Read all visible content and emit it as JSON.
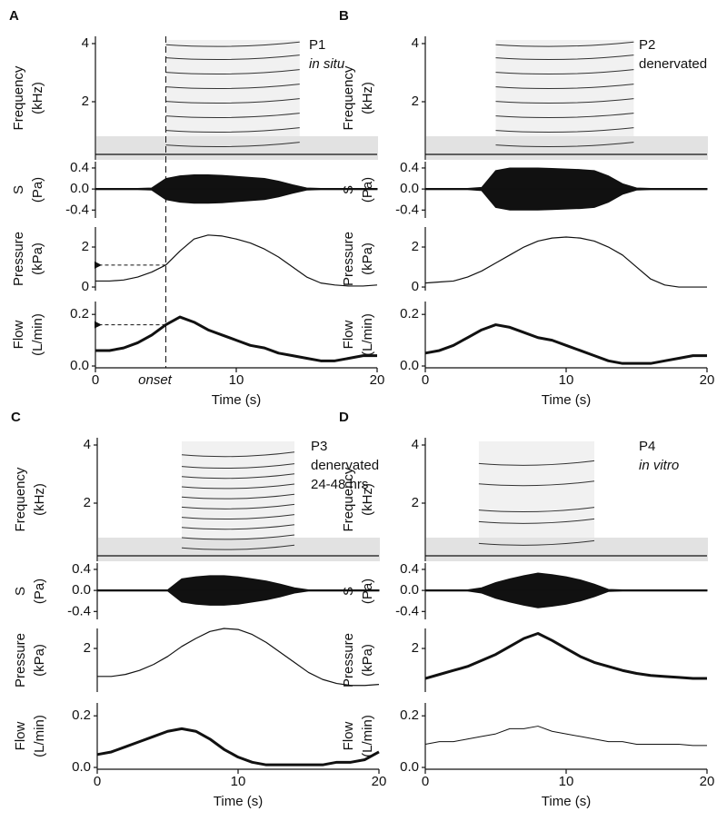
{
  "chart_data": [
    {
      "label": "A",
      "annotation": [
        {
          "text": "P1"
        },
        {
          "text": "in situ",
          "style": "italic"
        }
      ],
      "onset": {
        "label": "onset",
        "value": 5
      },
      "x": [
        0,
        1,
        2,
        3,
        4,
        5,
        6,
        7,
        8,
        9,
        10,
        11,
        12,
        13,
        14,
        15,
        16,
        17,
        18,
        19,
        20
      ],
      "xlim": [
        0,
        20
      ],
      "xticks": [
        0,
        10,
        20
      ],
      "xlabel": "Time (s)",
      "subplots": [
        {
          "type": "spectrogram",
          "ylabel": [
            "Frequency",
            "(kHz)"
          ],
          "ylim": [
            0,
            4.25
          ],
          "yticks": [
            2,
            4
          ],
          "start": 5,
          "end": 14.5,
          "harmonics": [
            0.45,
            0.95,
            1.45,
            1.95,
            2.45,
            2.95,
            3.45,
            3.9
          ]
        },
        {
          "type": "envelope",
          "ylabel": [
            "S",
            "(Pa)"
          ],
          "ylim": [
            -0.55,
            0.52
          ],
          "yticks": [
            0.4,
            {
              "value": 0,
              "label": "0.0"
            },
            -0.4
          ],
          "values": [
            0.01,
            0.01,
            0.01,
            0.01,
            0.02,
            0.2,
            0.25,
            0.27,
            0.27,
            0.26,
            0.24,
            0.22,
            0.2,
            0.15,
            0.08,
            0.02,
            0.01,
            0.01,
            0.01,
            0.01,
            0.01
          ]
        },
        {
          "type": "line",
          "ylabel": [
            "Pressure",
            "(kPa)"
          ],
          "ylim": [
            -0.18,
            3.0
          ],
          "yticks": [
            0,
            2
          ],
          "width": 1.2,
          "values": [
            0.3,
            0.3,
            0.35,
            0.5,
            0.75,
            1.1,
            1.8,
            2.4,
            2.6,
            2.55,
            2.4,
            2.2,
            1.9,
            1.5,
            1.0,
            0.5,
            0.2,
            0.1,
            0.05,
            0.05,
            0.1
          ]
        },
        {
          "type": "line",
          "ylabel": [
            "Flow",
            "(L/min)"
          ],
          "ylim": [
            -0.007,
            0.25
          ],
          "yticks": [
            {
              "value": 0,
              "label": "0.0"
            },
            0.2
          ],
          "width": 3,
          "xaxis": true,
          "values": [
            0.06,
            0.06,
            0.07,
            0.09,
            0.12,
            0.16,
            0.19,
            0.17,
            0.14,
            0.12,
            0.1,
            0.08,
            0.07,
            0.05,
            0.04,
            0.03,
            0.02,
            0.02,
            0.03,
            0.04,
            0.04
          ]
        }
      ]
    },
    {
      "label": "B",
      "annotation": [
        {
          "text": "P2"
        },
        {
          "text": "denervated"
        }
      ],
      "x": [
        0,
        1,
        2,
        3,
        4,
        5,
        6,
        7,
        8,
        9,
        10,
        11,
        12,
        13,
        14,
        15,
        16,
        17,
        18,
        19,
        20
      ],
      "xlim": [
        0,
        20
      ],
      "xticks": [
        0,
        10,
        20
      ],
      "xlabel": "Time (s)",
      "subplots": [
        {
          "type": "spectrogram",
          "ylabel": [
            "Frequency",
            "(kHz)"
          ],
          "ylim": [
            0,
            4.25
          ],
          "yticks": [
            2,
            4
          ],
          "start": 5,
          "end": 14.8,
          "harmonics": [
            0.45,
            0.95,
            1.45,
            1.95,
            2.45,
            2.95,
            3.45,
            3.9
          ]
        },
        {
          "type": "envelope",
          "ylabel": [
            "S",
            "(Pa)"
          ],
          "ylim": [
            -0.55,
            0.52
          ],
          "yticks": [
            0.4,
            {
              "value": 0,
              "label": "0.0"
            },
            -0.4
          ],
          "values": [
            0.01,
            0.01,
            0.01,
            0.01,
            0.03,
            0.35,
            0.4,
            0.4,
            0.4,
            0.39,
            0.38,
            0.37,
            0.35,
            0.25,
            0.1,
            0.02,
            0.01,
            0.01,
            0.01,
            0.01,
            0.01
          ]
        },
        {
          "type": "line",
          "ylabel": [
            "Pressure",
            "(kPa)"
          ],
          "ylim": [
            -0.18,
            3.0
          ],
          "yticks": [
            0,
            2
          ],
          "width": 1.2,
          "values": [
            0.2,
            0.25,
            0.3,
            0.5,
            0.8,
            1.2,
            1.6,
            2.0,
            2.3,
            2.45,
            2.5,
            2.45,
            2.3,
            2.0,
            1.6,
            1.0,
            0.4,
            0.1,
            0,
            0,
            0
          ]
        },
        {
          "type": "line",
          "ylabel": [
            "Flow",
            "(L/min)"
          ],
          "ylim": [
            -0.007,
            0.25
          ],
          "yticks": [
            {
              "value": 0,
              "label": "0.0"
            },
            0.2
          ],
          "width": 3,
          "xaxis": true,
          "values": [
            0.05,
            0.06,
            0.08,
            0.11,
            0.14,
            0.16,
            0.15,
            0.13,
            0.11,
            0.1,
            0.08,
            0.06,
            0.04,
            0.02,
            0.01,
            0.01,
            0.01,
            0.02,
            0.03,
            0.04,
            0.04
          ]
        }
      ]
    },
    {
      "label": "C",
      "annotation": [
        {
          "text": "P3"
        },
        {
          "text": "denervated"
        },
        {
          "text": "24-48 hrs"
        }
      ],
      "x": [
        0,
        1,
        2,
        3,
        4,
        5,
        6,
        7,
        8,
        9,
        10,
        11,
        12,
        13,
        14,
        15,
        16,
        17,
        18,
        19,
        20
      ],
      "xlim": [
        0,
        20
      ],
      "xticks": [
        0,
        10,
        20
      ],
      "xlabel": "Time (s)",
      "subplots": [
        {
          "type": "spectrogram",
          "ylabel": [
            "Frequency",
            "(kHz)"
          ],
          "ylim": [
            0,
            4.25
          ],
          "yticks": [
            2,
            4
          ],
          "start": 6,
          "end": 14,
          "harmonics": [
            0.4,
            0.75,
            1.1,
            1.45,
            1.8,
            2.15,
            2.5,
            2.85,
            3.2,
            3.6
          ]
        },
        {
          "type": "envelope",
          "ylabel": [
            "S",
            "(Pa)"
          ],
          "ylim": [
            -0.55,
            0.52
          ],
          "yticks": [
            0.4,
            {
              "value": 0,
              "label": "0.0"
            },
            -0.4
          ],
          "values": [
            0.01,
            0.01,
            0.01,
            0.01,
            0.01,
            0.01,
            0.22,
            0.26,
            0.28,
            0.28,
            0.26,
            0.22,
            0.18,
            0.12,
            0.05,
            0.01,
            0.01,
            0.01,
            0.01,
            0.01,
            0.01
          ]
        },
        {
          "type": "line",
          "ylabel": [
            "Pressure",
            "(kPa)"
          ],
          "ylim": [
            -0.18,
            3.0
          ],
          "yticks": [
            2
          ],
          "width": 1.2,
          "values": [
            0.6,
            0.6,
            0.7,
            0.9,
            1.2,
            1.6,
            2.1,
            2.5,
            2.85,
            3.0,
            2.95,
            2.7,
            2.3,
            1.8,
            1.3,
            0.8,
            0.45,
            0.25,
            0.15,
            0.15,
            0.2
          ]
        },
        {
          "type": "line",
          "ylabel": [
            "Flow",
            "(L/min)"
          ],
          "ylim": [
            -0.007,
            0.25
          ],
          "yticks": [
            {
              "value": 0,
              "label": "0.0"
            },
            0.2
          ],
          "width": 3,
          "xaxis": true,
          "values": [
            0.05,
            0.06,
            0.08,
            0.1,
            0.12,
            0.14,
            0.15,
            0.14,
            0.11,
            0.07,
            0.04,
            0.02,
            0.01,
            0.01,
            0.01,
            0.01,
            0.01,
            0.02,
            0.02,
            0.03,
            0.06
          ]
        }
      ]
    },
    {
      "label": "D",
      "annotation": [
        {
          "text": "P4"
        },
        {
          "text": "in vitro",
          "style": "italic"
        }
      ],
      "x": [
        0,
        1,
        2,
        3,
        4,
        5,
        6,
        7,
        8,
        9,
        10,
        11,
        12,
        13,
        14,
        15,
        16,
        17,
        18,
        19,
        20
      ],
      "xlim": [
        0,
        20
      ],
      "xticks": [
        0,
        10,
        20
      ],
      "xlabel": "Time (s)",
      "subplots": [
        {
          "type": "spectrogram",
          "ylabel": [
            "Frequency",
            "(kHz)"
          ],
          "ylim": [
            0,
            4.25
          ],
          "yticks": [
            2,
            4
          ],
          "start": 3.8,
          "end": 12,
          "harmonics": [
            0.55,
            1.3,
            1.7,
            2.6,
            3.3
          ]
        },
        {
          "type": "envelope",
          "ylabel": [
            "S",
            "(Pa)"
          ],
          "ylim": [
            -0.55,
            0.52
          ],
          "yticks": [
            0.4,
            {
              "value": 0,
              "label": "0.0"
            },
            -0.4
          ],
          "values": [
            0.01,
            0.01,
            0.01,
            0.01,
            0.05,
            0.15,
            0.22,
            0.28,
            0.33,
            0.3,
            0.26,
            0.2,
            0.12,
            0.02,
            0.01,
            0.01,
            0.01,
            0.01,
            0.01,
            0.01,
            0.01
          ]
        },
        {
          "type": "line",
          "ylabel": [
            "Pressure",
            "(kPa)"
          ],
          "ylim": [
            -0.18,
            3.0
          ],
          "yticks": [
            2
          ],
          "width": 3,
          "values": [
            0.5,
            0.7,
            0.9,
            1.1,
            1.4,
            1.7,
            2.1,
            2.5,
            2.75,
            2.4,
            2.0,
            1.6,
            1.3,
            1.1,
            0.9,
            0.75,
            0.65,
            0.6,
            0.55,
            0.5,
            0.5
          ]
        },
        {
          "type": "line",
          "ylabel": [
            "Flow",
            "(L/min)"
          ],
          "ylim": [
            -0.007,
            0.25
          ],
          "yticks": [
            {
              "value": 0,
              "label": "0.0"
            },
            0.2
          ],
          "width": 1,
          "xaxis": true,
          "values": [
            0.09,
            0.1,
            0.1,
            0.11,
            0.12,
            0.13,
            0.15,
            0.15,
            0.16,
            0.14,
            0.13,
            0.12,
            0.11,
            0.1,
            0.1,
            0.09,
            0.09,
            0.09,
            0.09,
            0.085,
            0.085
          ]
        }
      ]
    }
  ]
}
